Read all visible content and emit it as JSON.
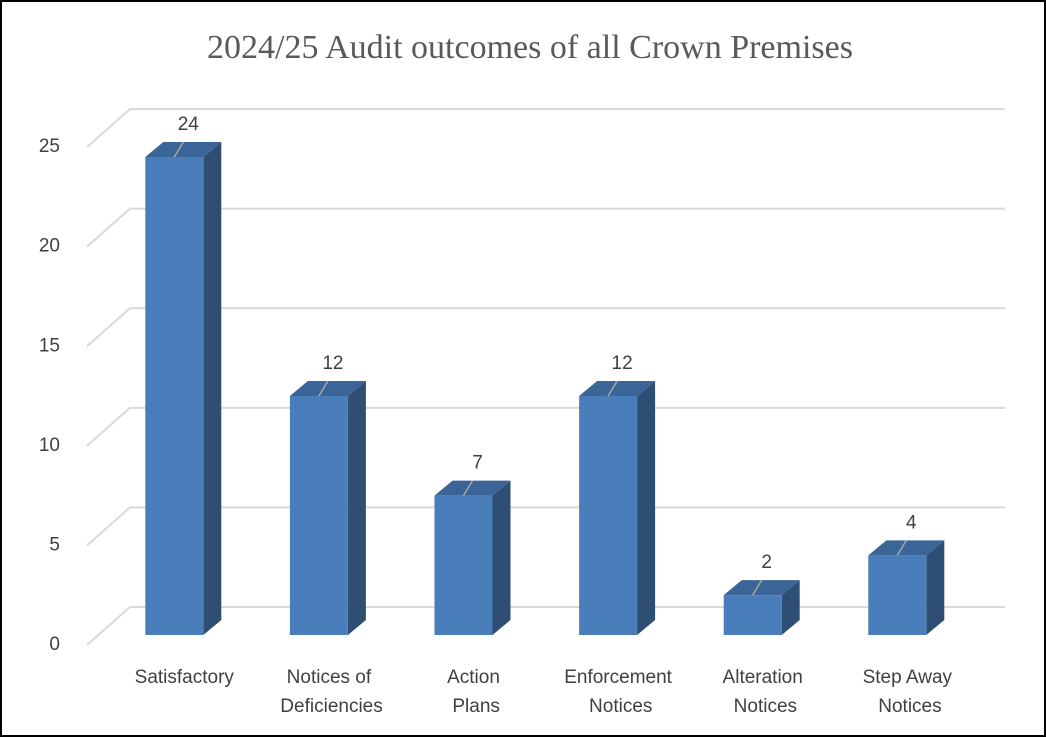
{
  "chart_data": {
    "type": "bar3d",
    "title": "2024/25 Audit outcomes of all Crown Premises",
    "categories": [
      "Satisfactory",
      "Notices of Deficiencies",
      "Action Plans",
      "Enforcement Notices",
      "Alteration Notices",
      "Step Away Notices"
    ],
    "values": [
      24,
      12,
      7,
      12,
      2,
      4
    ],
    "color": "#4a7ebb",
    "ylim": [
      0,
      25
    ],
    "yticks": [
      0,
      5,
      10,
      15,
      20,
      25
    ],
    "grid": true
  }
}
